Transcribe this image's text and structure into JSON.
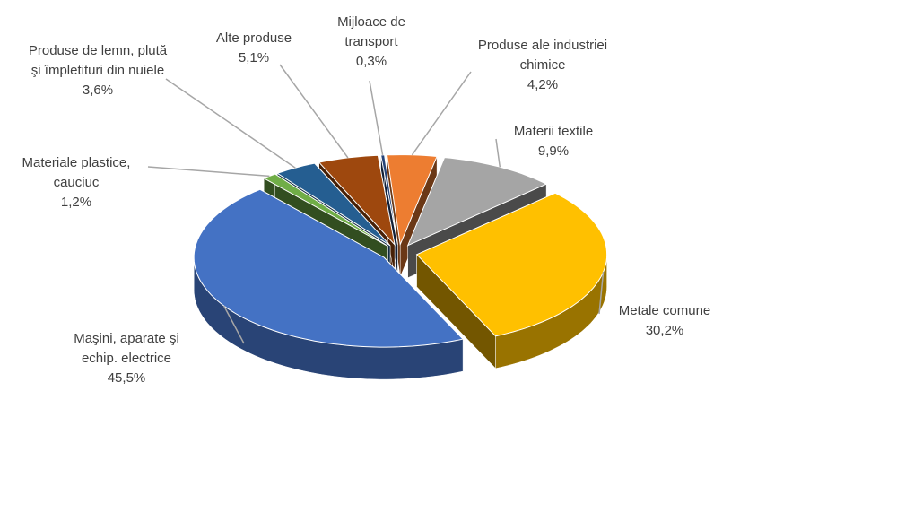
{
  "chart_data": {
    "type": "pie",
    "categories": [
      "Produse ale industriei chimice",
      "Materii textile",
      "Metale comune",
      "Maşini, aparate şi echip. electrice",
      "Materiale plastice, cauciuc",
      "Produse de lemn, plută şi împletituri din nuiele",
      "Alte produse",
      "Mijloace de transport"
    ],
    "values": [
      4.2,
      9.9,
      30.2,
      45.5,
      1.2,
      3.6,
      5.1,
      0.3
    ],
    "value_labels": [
      "4,2%",
      "9,9%",
      "30,2%",
      "45,5%",
      "1,2%",
      "3,6%",
      "5,1%",
      "0,3%"
    ],
    "colors": [
      "#ED7D31",
      "#A5A5A5",
      "#FFC000",
      "#4472C4",
      "#70AD47",
      "#255E91",
      "#9E480E",
      "#264478"
    ]
  }
}
